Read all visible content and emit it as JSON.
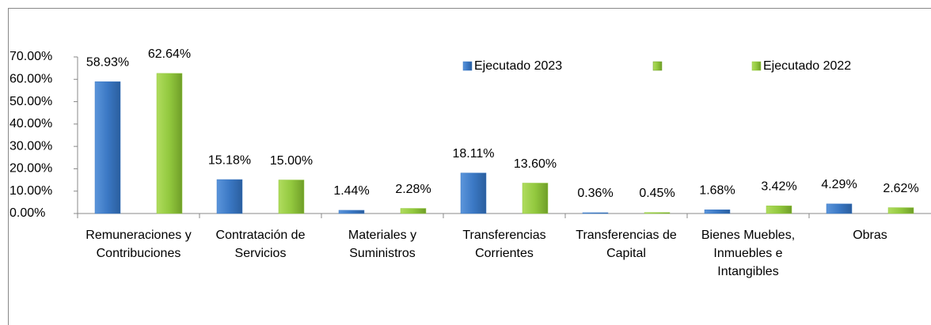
{
  "chart_data": {
    "type": "bar",
    "categories": [
      "Remuneraciones y Contribuciones",
      "Contratación de Servicios",
      "Materiales y Suministros",
      "Transferencias Corrientes",
      "Transferencias de Capital",
      "Bienes Muebles, Inmuebles e Intangibles",
      "Obras"
    ],
    "series": [
      {
        "name": "Ejecutado 2023",
        "color": "#3b78c4",
        "values": [
          58.93,
          15.18,
          1.44,
          18.11,
          0.36,
          1.68,
          4.29
        ],
        "value_labels": [
          "58.93%",
          "15.18%",
          "1.44%",
          "18.11%",
          "0.36%",
          "1.68%",
          "4.29%"
        ]
      },
      {
        "name": "Ejecutado 2022",
        "color": "#92c83e",
        "values": [
          62.64,
          15.0,
          2.28,
          13.6,
          0.45,
          3.42,
          2.62
        ],
        "value_labels": [
          "62.64%",
          "15.00%",
          "2.28%",
          "13.60%",
          "0.45%",
          "3.42%",
          "2.62%"
        ]
      }
    ],
    "ylim": [
      0,
      70
    ],
    "yticks": [
      {
        "value": 0,
        "label": "0.00%"
      },
      {
        "value": 10,
        "label": "10.00%"
      },
      {
        "value": 20,
        "label": "20.00%"
      },
      {
        "value": 30,
        "label": "30.00%"
      },
      {
        "value": 40,
        "label": "40.00%"
      },
      {
        "value": 50,
        "label": "50.00%"
      },
      {
        "value": 60,
        "label": "60.00%"
      },
      {
        "value": 70,
        "label": "70.00%"
      }
    ],
    "grid": false
  }
}
